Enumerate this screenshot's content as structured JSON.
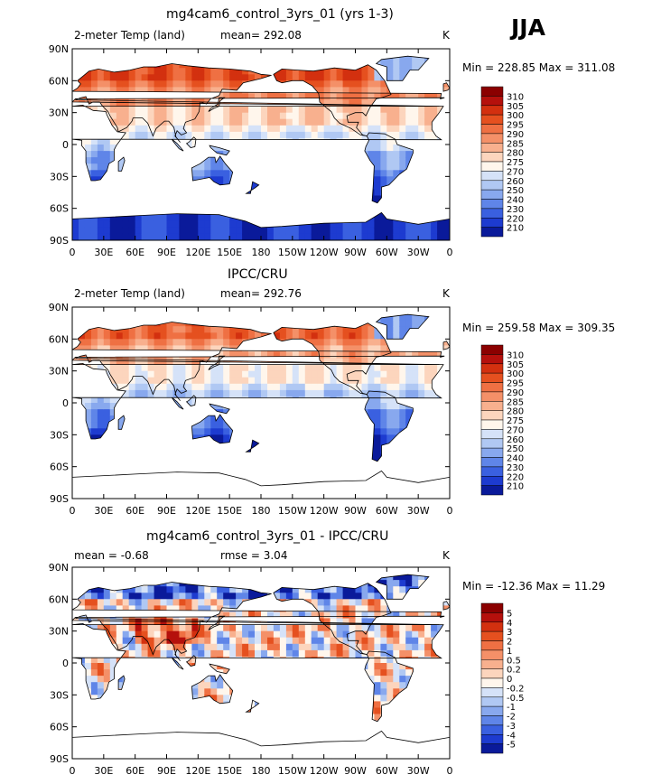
{
  "season": "JJA",
  "chart_data": [
    {
      "type": "heatmap",
      "title": "mg4cam6_control_3yrs_01 (yrs 1-3)",
      "left_label": "2-meter Temp (land)",
      "mean_text": "mean= 292.08",
      "units": "K",
      "minmax_text": "Min = 228.85 Max = 311.08",
      "xticks": [
        "0",
        "30E",
        "60E",
        "90E",
        "120E",
        "150E",
        "180",
        "150W",
        "120W",
        "90W",
        "60W",
        "30W",
        "0"
      ],
      "yticks": [
        "90N",
        "60N",
        "30N",
        "0",
        "30S",
        "60S",
        "90S"
      ],
      "colorbar_levels": [
        "310",
        "305",
        "300",
        "295",
        "290",
        "285",
        "280",
        "275",
        "270",
        "260",
        "250",
        "240",
        "230",
        "220",
        "210"
      ]
    },
    {
      "type": "heatmap",
      "title": "IPCC/CRU",
      "left_label": "2-meter Temp (land)",
      "mean_text": "mean= 292.76",
      "units": "K",
      "minmax_text": "Min = 259.58 Max = 309.35",
      "xticks": [
        "0",
        "30E",
        "60E",
        "90E",
        "120E",
        "150E",
        "180",
        "150W",
        "120W",
        "90W",
        "60W",
        "30W",
        "0"
      ],
      "yticks": [
        "90N",
        "60N",
        "30N",
        "0",
        "30S",
        "60S",
        "90S"
      ],
      "colorbar_levels": [
        "310",
        "305",
        "300",
        "295",
        "290",
        "285",
        "280",
        "275",
        "270",
        "260",
        "250",
        "240",
        "230",
        "220",
        "210"
      ]
    },
    {
      "type": "heatmap",
      "title": "mg4cam6_control_3yrs_01 - IPCC/CRU",
      "left_label": "mean =   -0.68",
      "mean_text": "rmse =    3.04",
      "units": "K",
      "minmax_text": "Min = -12.36 Max =  11.29",
      "xticks": [
        "0",
        "30E",
        "60E",
        "90E",
        "120E",
        "150E",
        "180",
        "150W",
        "120W",
        "90W",
        "60W",
        "30W",
        "0"
      ],
      "yticks": [
        "90N",
        "60N",
        "30N",
        "0",
        "30S",
        "60S",
        "90S"
      ],
      "colorbar_levels": [
        "5",
        "4",
        "3",
        "2",
        "1",
        "0.5",
        "0.2",
        "0",
        "-0.2",
        "-0.5",
        "-1",
        "-2",
        "-3",
        "-4",
        "-5"
      ]
    }
  ],
  "colors": {
    "levels16": [
      "#8b0000",
      "#b5100c",
      "#d3300f",
      "#e5501f",
      "#ef7043",
      "#f49068",
      "#f8b08e",
      "#fcd5bd",
      "#fff6ec",
      "#d5e2f8",
      "#b0c8f3",
      "#88a8ee",
      "#5f85e8",
      "#3a60e0",
      "#1d3bd0",
      "#0a1a9a"
    ]
  }
}
